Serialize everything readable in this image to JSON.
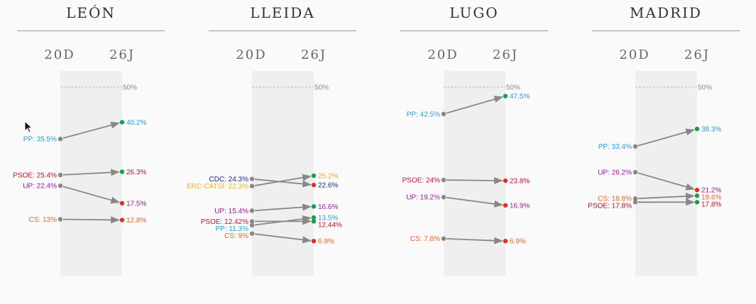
{
  "colors": {
    "PP": "#2a9fd6",
    "PSOE": "#c8102e",
    "UP": "#a0199e",
    "CS": "#e8662a",
    "CDC": "#1a2b8c",
    "ERC-CATSI": "#f0b419",
    "dot_start": "#888888",
    "dot_end_up": "#15a04a",
    "dot_end_down": "#e0301e",
    "arrow": "#888888"
  },
  "chart_data": [
    {
      "type": "slope",
      "title": "LEÓN",
      "categories": [
        "20D",
        "26J"
      ],
      "reference_line": {
        "value": 50,
        "label": "50%"
      },
      "series": [
        {
          "name": "PP",
          "label_start": "PP: 35.5%",
          "label_end": "40.2%",
          "values": [
            35.5,
            40.2
          ]
        },
        {
          "name": "PSOE",
          "label_start": "PSOE: 25.4%",
          "label_end": "26.3%",
          "values": [
            25.4,
            26.3
          ]
        },
        {
          "name": "UP",
          "label_start": "UP: 22.4%",
          "label_end": "17.5%",
          "values": [
            22.4,
            17.5
          ]
        },
        {
          "name": "CS",
          "label_start": "CS: 13%",
          "label_end": "12.8%",
          "values": [
            13,
            12.8
          ]
        }
      ]
    },
    {
      "type": "slope",
      "title": "LLEIDA",
      "categories": [
        "20D",
        "26J"
      ],
      "reference_line": {
        "value": 50,
        "label": "50%"
      },
      "series": [
        {
          "name": "CDC",
          "label_start": "CDC: 24.3%",
          "label_end": "22.6%",
          "values": [
            24.3,
            22.6
          ]
        },
        {
          "name": "ERC-CATSI",
          "label_start": "ERC-CATSI: 22.3%",
          "label_end": "25.2%",
          "values": [
            22.3,
            25.2
          ]
        },
        {
          "name": "UP",
          "label_start": "UP: 15.4%",
          "label_end": "16.6%",
          "values": [
            15.4,
            16.6
          ]
        },
        {
          "name": "PSOE",
          "label_start": "PSOE: 12.42%",
          "label_end": "12.44%",
          "values": [
            12.42,
            12.44
          ]
        },
        {
          "name": "PP",
          "label_start": "PP: 11.3%",
          "label_end": "13.5%",
          "values": [
            11.3,
            13.5
          ]
        },
        {
          "name": "CS",
          "label_start": "CS: 9%",
          "label_end": "6.9%",
          "values": [
            9,
            6.9
          ]
        }
      ]
    },
    {
      "type": "slope",
      "title": "LUGO",
      "categories": [
        "20D",
        "26J"
      ],
      "reference_line": {
        "value": 50,
        "label": "50%"
      },
      "series": [
        {
          "name": "PP",
          "label_start": "PP: 42.5%",
          "label_end": "47.5%",
          "values": [
            42.5,
            47.5
          ]
        },
        {
          "name": "PSOE",
          "label_start": "PSOE: 24%",
          "label_end": "23.8%",
          "values": [
            24,
            23.8
          ]
        },
        {
          "name": "UP",
          "label_start": "UP: 19.2%",
          "label_end": "16.9%",
          "values": [
            19.2,
            16.9
          ]
        },
        {
          "name": "CS",
          "label_start": "CS: 7.6%",
          "label_end": "6.9%",
          "values": [
            7.6,
            6.9
          ]
        }
      ]
    },
    {
      "type": "slope",
      "title": "MADRID",
      "categories": [
        "20D",
        "26J"
      ],
      "reference_line": {
        "value": 50,
        "label": "50%"
      },
      "series": [
        {
          "name": "PP",
          "label_start": "PP: 33.4%",
          "label_end": "38.3%",
          "values": [
            33.4,
            38.3
          ]
        },
        {
          "name": "UP",
          "label_start": "UP: 26.2%",
          "label_end": "21.2%",
          "values": [
            26.2,
            21.2
          ]
        },
        {
          "name": "CS",
          "label_start": "CS: 18.8%",
          "label_end": "19.6%",
          "values": [
            18.8,
            19.6
          ]
        },
        {
          "name": "PSOE",
          "label_start": "PSOE: 17.8%",
          "label_end": "17.8%",
          "values": [
            17.8,
            17.8
          ]
        }
      ]
    }
  ]
}
